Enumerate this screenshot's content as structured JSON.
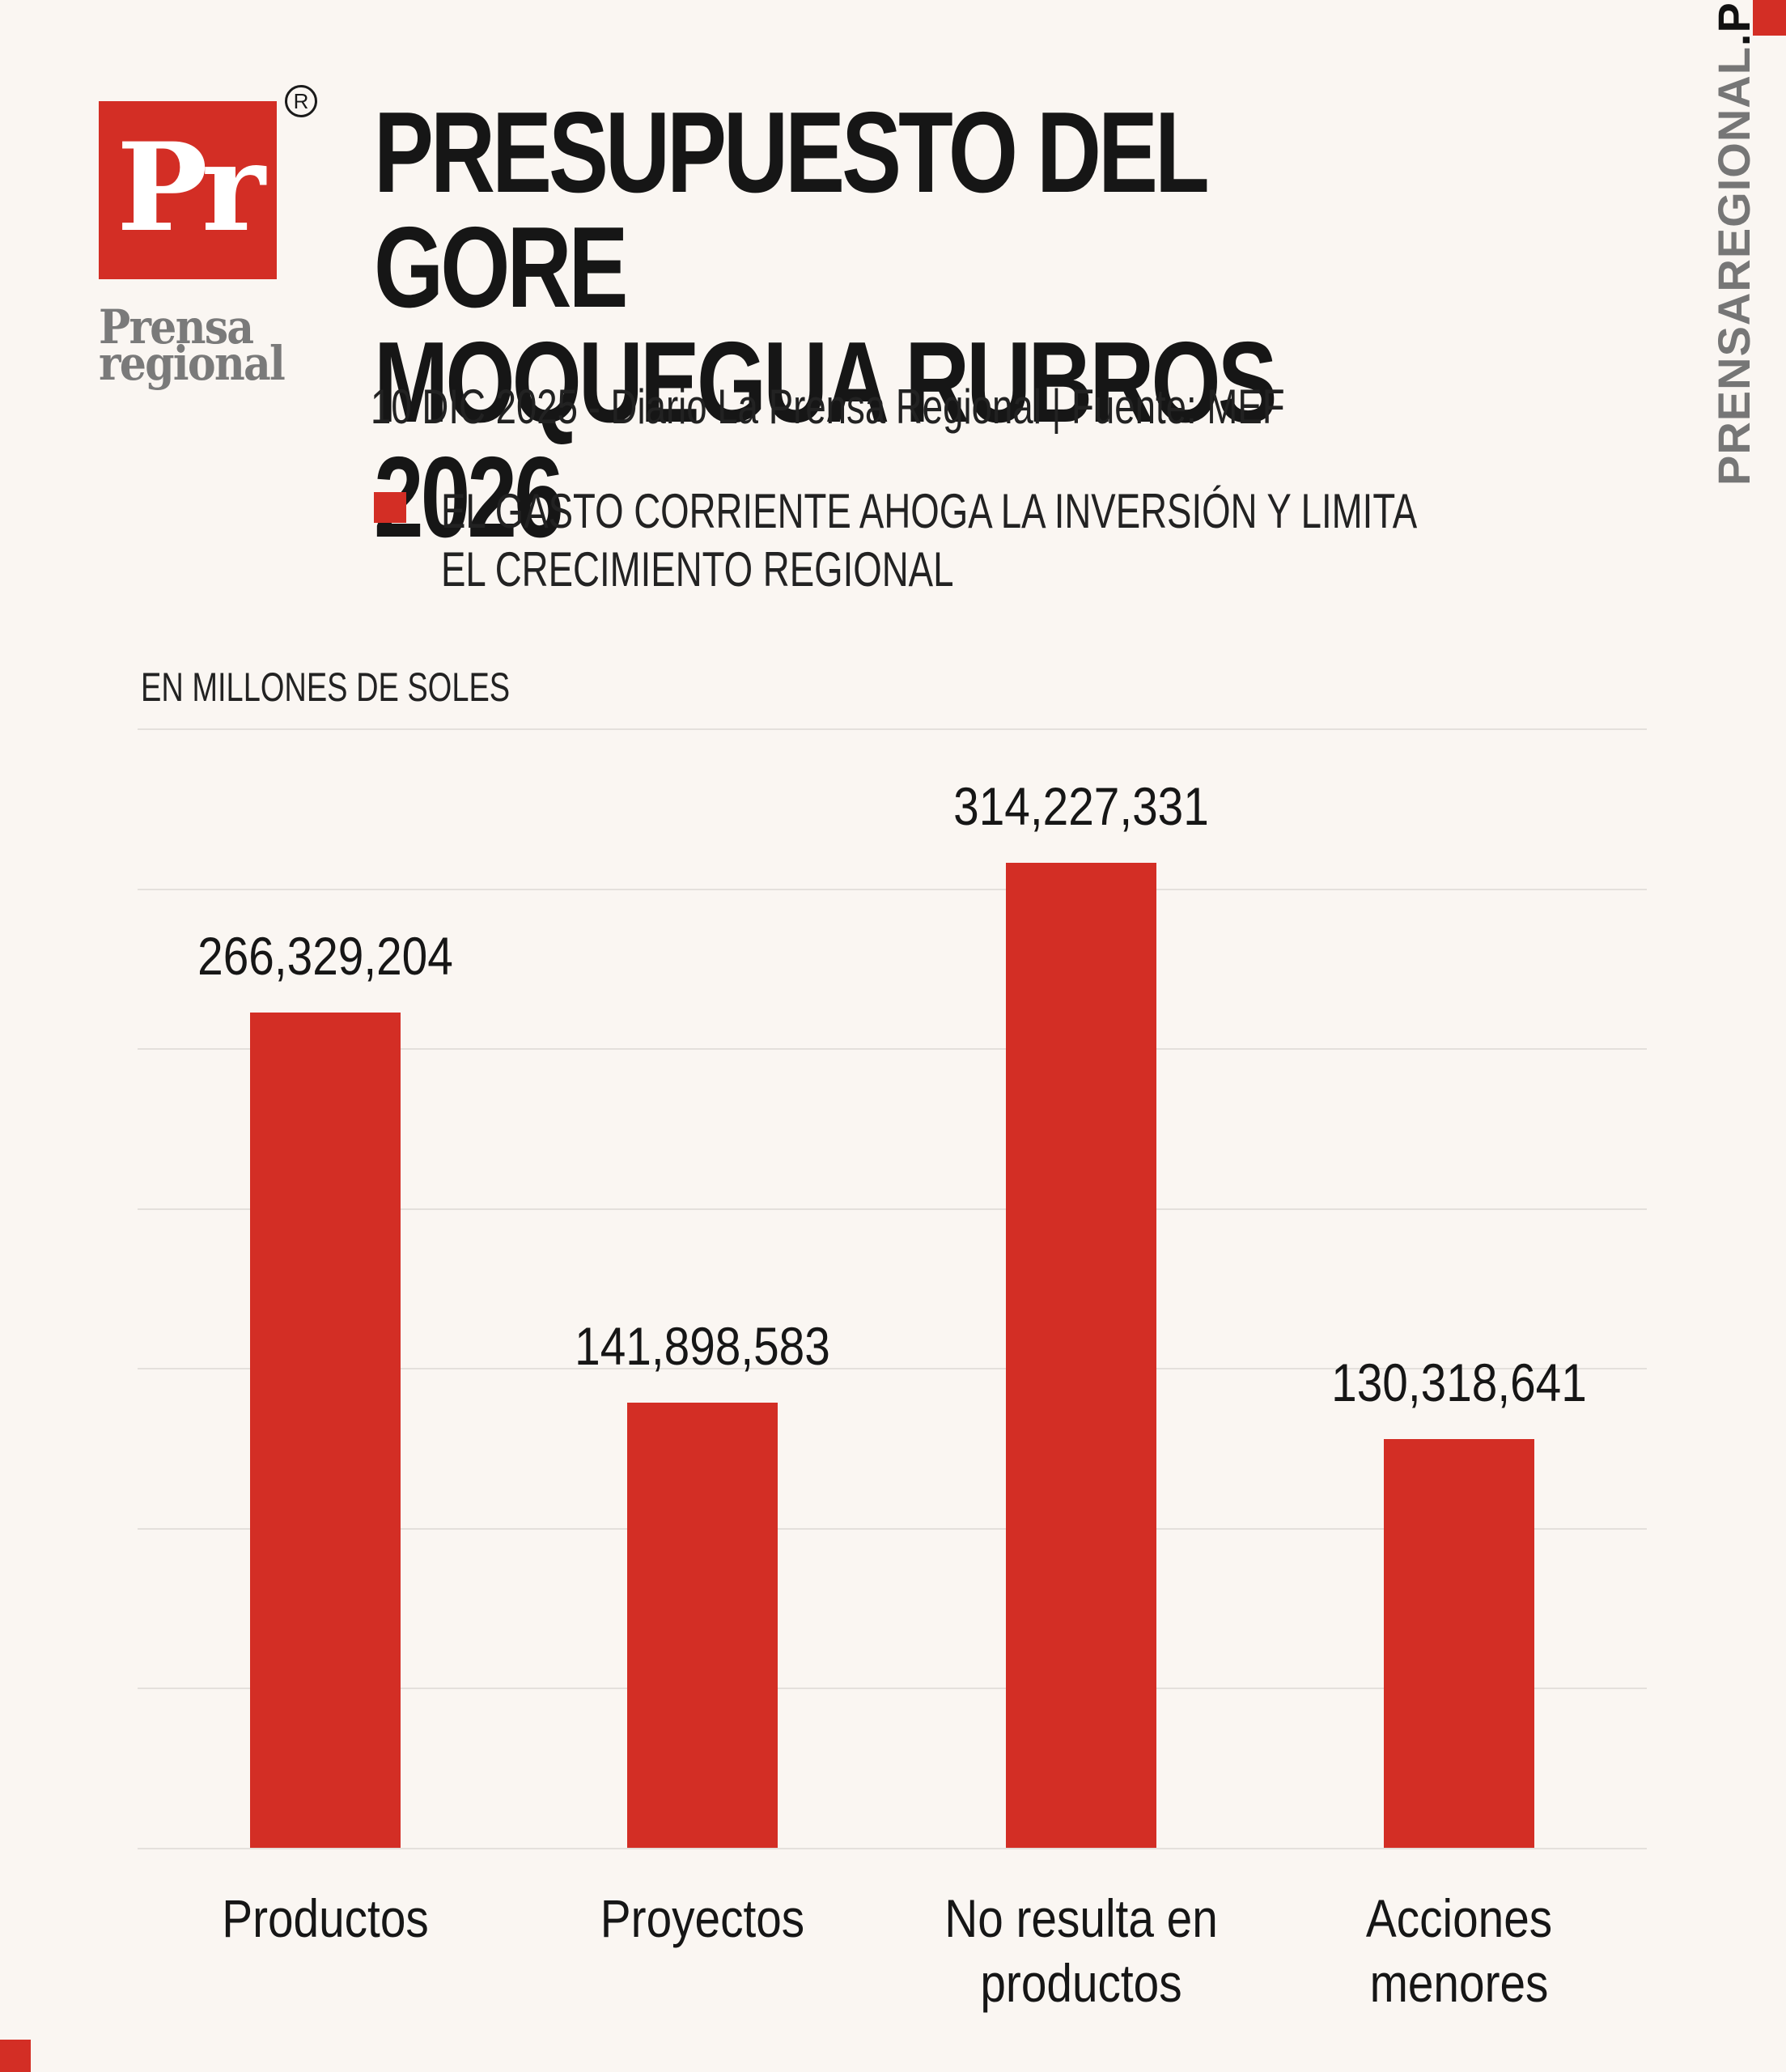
{
  "brand": {
    "logo_letters": "Pr",
    "registered_mark": "R",
    "wordmark_line1": "Prensa",
    "wordmark_line2": "regional",
    "watermark_main": "PRENSAREGIONAL",
    "watermark_suffix": ".PE",
    "accent_color": "#d32e25"
  },
  "header": {
    "title_line1": "PRESUPUESTO DEL GORE",
    "title_line2": "MOQUEGUA RUBROS 2026",
    "subtitle": "10 DIC 2025 - Diario La Prensa Regional | Fuente: MEF",
    "bullet": "EL GASTO CORRIENTE AHOGA LA INVERSIÓN Y LIMITA EL CRECIMIENTO REGIONAL"
  },
  "chart_data": {
    "type": "bar",
    "title": "PRESUPUESTO DEL GORE MOQUEGUA RUBROS 2026",
    "subtitle": "10 DIC 2025 - Diario La Prensa Regional | Fuente: MEF",
    "ylabel": "EN MILLONES DE SOLES",
    "xlabel": "",
    "categories": [
      "Productos",
      "Proyectos",
      "No resulta en productos",
      "Acciones menores"
    ],
    "values": [
      266329204,
      141898583,
      314227331,
      130318641
    ],
    "value_labels": [
      "266,329,204",
      "141,898,583",
      "314,227,331",
      "130,318,641"
    ],
    "ylim": [
      0,
      357000000
    ],
    "grid": true,
    "gridline_count": 8,
    "legend": "none",
    "bar_color": "#d32e25"
  },
  "labels": {
    "cat0_l1": "Productos",
    "cat0_l2": "",
    "cat1_l1": "Proyectos",
    "cat1_l2": "",
    "cat2_l1": "No resulta en",
    "cat2_l2": "productos",
    "cat3_l1": "Acciones",
    "cat3_l2": "menores"
  }
}
